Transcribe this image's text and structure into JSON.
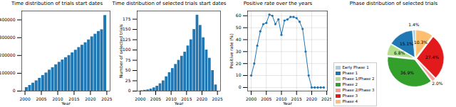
{
  "chart_data": [
    {
      "type": "histogram",
      "title": "Time distribution of trials start dates",
      "x_label": "Year",
      "bins": [
        2000,
        2001,
        2002,
        2003,
        2004,
        2005,
        2006,
        2007,
        2008,
        2009,
        2010,
        2011,
        2012,
        2013,
        2014,
        2015,
        2016,
        2017,
        2018,
        2019,
        2020,
        2021,
        2022,
        2023,
        2024,
        2025
      ],
      "values": [
        20000,
        32000,
        45000,
        58000,
        72000,
        88000,
        102000,
        118000,
        132000,
        148000,
        162000,
        175000,
        188000,
        200000,
        215000,
        230000,
        245000,
        258000,
        272000,
        288000,
        305000,
        320000,
        335000,
        345000,
        425000
      ],
      "color": "#1f77b4",
      "xlim": [
        1999,
        2026
      ],
      "xticks": [
        2000,
        2005,
        2010,
        2015,
        2020,
        2025
      ],
      "ylim": [
        0,
        450000
      ],
      "yticks": [
        0,
        100000,
        200000,
        300000,
        400000
      ]
    },
    {
      "type": "histogram",
      "title": "Time distribution of selected trials start dates",
      "x_label": "Year",
      "y_label": "Number of selected trials",
      "bins": [
        2000,
        2001,
        2002,
        2003,
        2004,
        2005,
        2006,
        2007,
        2008,
        2009,
        2010,
        2011,
        2012,
        2013,
        2014,
        2015,
        2016,
        2017,
        2018,
        2019,
        2020,
        2021,
        2022,
        2023,
        2024,
        2025
      ],
      "values": [
        1,
        2,
        3,
        5,
        8,
        12,
        18,
        25,
        35,
        45,
        55,
        65,
        75,
        85,
        95,
        110,
        125,
        150,
        185,
        160,
        130,
        100,
        80,
        50,
        15
      ],
      "color": "#1f77b4",
      "xlim": [
        1999,
        2026
      ],
      "xticks": [
        2000,
        2005,
        2010,
        2015,
        2020,
        2025
      ],
      "ylim": [
        0,
        195
      ],
      "yticks": [
        0,
        25,
        50,
        75,
        100,
        125,
        150,
        175
      ]
    },
    {
      "type": "line",
      "title": "Positive rate over the years",
      "x_label": "Year",
      "y_label": "Positive rate (%)",
      "x": [
        2000,
        2001,
        2002,
        2003,
        2004,
        2005,
        2006,
        2007,
        2008,
        2009,
        2010,
        2011,
        2012,
        2013,
        2014,
        2015,
        2016,
        2017,
        2018,
        2019,
        2020,
        2021,
        2022,
        2023,
        2024
      ],
      "values": [
        10,
        20,
        35,
        47,
        53,
        54,
        61,
        60,
        53,
        57,
        44,
        56,
        57,
        59,
        59,
        58,
        55,
        49,
        30,
        10,
        0,
        0,
        0,
        0,
        0
      ],
      "color": "#1f77b4",
      "marker": "circle",
      "grid": true,
      "xlim": [
        1998.8,
        2025.2
      ],
      "xticks": [
        2000,
        2005,
        2010,
        2015,
        2020,
        2025
      ],
      "ylim": [
        -3,
        64
      ],
      "yticks": [
        0,
        10,
        20,
        30,
        40,
        50,
        60
      ]
    },
    {
      "type": "pie",
      "title": "Phase distribution of selected trials",
      "categories": [
        "Early Phase 1",
        "Phase 1",
        "Phase 1/Phase 2",
        "Phase 2",
        "Phase 2/Phase 3",
        "Phase 3",
        "Phase 4"
      ],
      "values": [
        1.4,
        15.1,
        6.8,
        36.9,
        2.0,
        27.4,
        10.3
      ],
      "value_labels": [
        "1.4%",
        "15.1%",
        "6.8%",
        "36.9%",
        "2.0%",
        "27.4%",
        "10.3%"
      ],
      "colors": [
        "#a6cee3",
        "#1f78b4",
        "#b2df8a",
        "#33a02c",
        "#fb9a99",
        "#e31a1c",
        "#fdbf6f"
      ],
      "data_labels": true,
      "legend": "lower left"
    }
  ]
}
